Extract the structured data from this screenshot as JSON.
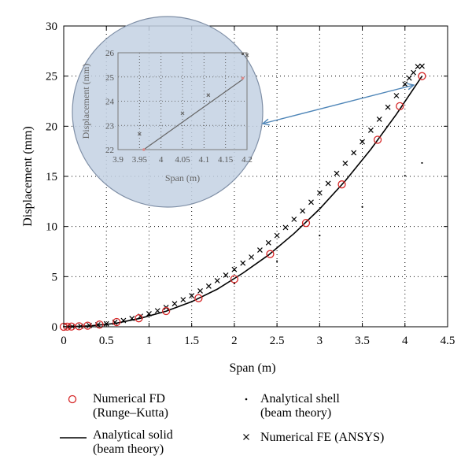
{
  "chart_data": {
    "type": "line",
    "xlabel": "Span (m)",
    "ylabel": "Displacement (mm)",
    "xlim": [
      0,
      4.5
    ],
    "ylim": [
      0,
      30
    ],
    "xticks": [
      "0",
      "0.5",
      "1",
      "1.5",
      "2",
      "2.5",
      "3",
      "3.5",
      "4",
      "4.5"
    ],
    "yticks": [
      "0",
      "5",
      "10",
      "15",
      "20",
      "25",
      "30"
    ],
    "grid": true,
    "legend_position": "bottom",
    "series": [
      {
        "name": "Numerical FD\n(Runge–Kutta)",
        "marker": "circle",
        "color": "#d62728",
        "x": [
          0,
          0.04,
          0.09,
          0.18,
          0.28,
          0.42,
          0.62,
          0.88,
          1.2,
          1.58,
          2.0,
          2.42,
          2.84,
          3.26,
          3.68,
          3.94,
          4.2
        ],
        "y": [
          0,
          0.01,
          0.02,
          0.05,
          0.11,
          0.22,
          0.47,
          0.85,
          1.57,
          2.85,
          4.75,
          7.25,
          10.35,
          14.2,
          18.65,
          22.0,
          25.0
        ]
      },
      {
        "name": "Analytical shell\n(beam theory)",
        "marker": "dot",
        "color": "#000000",
        "x": [
          0,
          0.5,
          1.0,
          1.5,
          2.0,
          2.5,
          3.0,
          3.5,
          4.0,
          4.2
        ],
        "y": [
          0,
          0.29,
          1.14,
          2.5,
          4.32,
          6.54,
          9.1,
          11.96,
          15.06,
          16.34
        ]
      },
      {
        "name": "Analytical solid\n(beam theory)",
        "marker": "line",
        "color": "#000000",
        "x": [
          0,
          0.3,
          0.6,
          0.9,
          1.2,
          1.5,
          1.8,
          2.1,
          2.4,
          2.7,
          3.0,
          3.3,
          3.6,
          3.9,
          4.2
        ],
        "y": [
          0,
          0.08,
          0.33,
          0.85,
          1.55,
          2.5,
          3.75,
          5.35,
          7.15,
          9.3,
          11.75,
          14.55,
          17.7,
          21.2,
          25.0
        ]
      },
      {
        "name": "Numerical FE (ANSYS)",
        "marker": "x",
        "color": "#000000",
        "x": [
          0.05,
          0.1,
          0.2,
          0.3,
          0.4,
          0.5,
          0.6,
          0.7,
          0.8,
          0.9,
          1.0,
          1.1,
          1.2,
          1.3,
          1.4,
          1.5,
          1.6,
          1.7,
          1.8,
          1.9,
          2.0,
          2.1,
          2.2,
          2.3,
          2.4,
          2.5,
          2.6,
          2.7,
          2.8,
          2.9,
          3.0,
          3.1,
          3.2,
          3.3,
          3.4,
          3.5,
          3.6,
          3.7,
          3.8,
          3.9,
          4.0,
          4.05,
          4.1,
          4.15,
          4.2
        ],
        "y": [
          0.01,
          0.02,
          0.05,
          0.12,
          0.2,
          0.3,
          0.45,
          0.62,
          0.83,
          1.05,
          1.3,
          1.6,
          1.93,
          2.3,
          2.7,
          3.1,
          3.58,
          4.05,
          4.6,
          5.15,
          5.72,
          6.35,
          6.95,
          7.65,
          8.38,
          9.1,
          9.9,
          10.72,
          11.55,
          12.42,
          13.35,
          14.3,
          15.3,
          16.3,
          17.35,
          18.45,
          19.6,
          20.7,
          21.9,
          23.05,
          24.2,
          24.8,
          25.35,
          25.95,
          26.0
        ]
      }
    ],
    "inset": {
      "xlabel": "Span (m)",
      "ylabel": "Displacement (mm)",
      "xlim": [
        3.9,
        4.2
      ],
      "ylim": [
        22,
        26
      ],
      "xticks": [
        "3.9",
        "3.95",
        "4",
        "4.05",
        "4.1",
        "4.15",
        "4.2"
      ],
      "yticks": [
        "22",
        "23",
        "24",
        "25",
        "26"
      ],
      "line_points": [
        [
          3.96,
          22.0
        ],
        [
          4.19,
          24.9
        ]
      ],
      "circles": [
        [
          3.96,
          22.0
        ],
        [
          4.19,
          24.95
        ]
      ],
      "crosses": [
        [
          3.95,
          22.65
        ],
        [
          4.05,
          23.5
        ],
        [
          4.11,
          24.25
        ],
        [
          4.2,
          25.9
        ]
      ],
      "dots": [
        [
          4.19,
          25.95
        ]
      ]
    }
  }
}
